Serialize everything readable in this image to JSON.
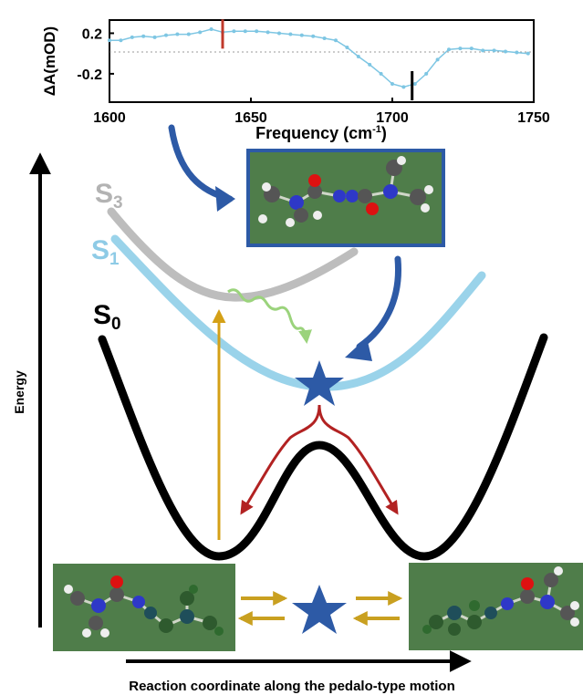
{
  "spectrum": {
    "ylabel": "ΔA(mOD)",
    "xlabel_prefix": "Frequency (cm",
    "xlabel_sup": "-1",
    "xlabel_suffix": ")",
    "xlim": [
      1600,
      1750
    ],
    "ylim": [
      -0.48,
      0.33
    ],
    "x_ticks": [
      "1600",
      "1650",
      "1700",
      "1750"
    ],
    "y_ticks": [
      "0.2",
      "-0.2"
    ],
    "y_tick_values": [
      0.2,
      -0.2
    ],
    "line_color": "#7ec6e3",
    "markers": [
      {
        "name": "red-marker",
        "x": 1640,
        "color": "#c0392b"
      },
      {
        "name": "black-marker",
        "x": 1707,
        "color": "#000000"
      }
    ],
    "x": [
      1600,
      1604,
      1608,
      1612,
      1616,
      1620,
      1624,
      1628,
      1632,
      1636,
      1640,
      1644,
      1648,
      1652,
      1656,
      1660,
      1664,
      1668,
      1672,
      1676,
      1680,
      1684,
      1688,
      1692,
      1696,
      1700,
      1704,
      1708,
      1712,
      1716,
      1720,
      1724,
      1728,
      1732,
      1736,
      1740,
      1744,
      1748
    ],
    "y": [
      0.13,
      0.13,
      0.16,
      0.17,
      0.16,
      0.18,
      0.19,
      0.19,
      0.21,
      0.24,
      0.21,
      0.22,
      0.22,
      0.22,
      0.21,
      0.2,
      0.19,
      0.18,
      0.17,
      0.15,
      0.13,
      0.06,
      -0.03,
      -0.11,
      -0.2,
      -0.3,
      -0.33,
      -0.3,
      -0.2,
      -0.06,
      0.04,
      0.05,
      0.05,
      0.03,
      0.03,
      0.02,
      0.01,
      0.0
    ]
  },
  "diagram": {
    "y_axis_label": "Energy",
    "x_axis_label": "Reaction coordinate along the pedalo-type motion",
    "states": [
      {
        "name": "s3-label",
        "base": "S",
        "sub": "3",
        "color": "#b3b3b3"
      },
      {
        "name": "s1-label",
        "base": "S",
        "sub": "1",
        "color": "#8ecbe6"
      },
      {
        "name": "s0-label",
        "base": "S",
        "sub": "0",
        "color": "#000000"
      }
    ],
    "colors": {
      "s0_curve": "#000000",
      "s1_curve": "#9ad3ea",
      "s3_curve": "#bdbdbd",
      "excitation_arrow": "#d4a017",
      "fluorescence_wave": "#9bd37c",
      "relaxation_arrow": "#2d5aa6",
      "branch_arrows": "#b22222",
      "star": "#2d5aa6",
      "equilibrium_arrows": "#c9a020",
      "molecule_panel": "#4f7d4a",
      "panel_border": "#2d5aa6"
    }
  }
}
